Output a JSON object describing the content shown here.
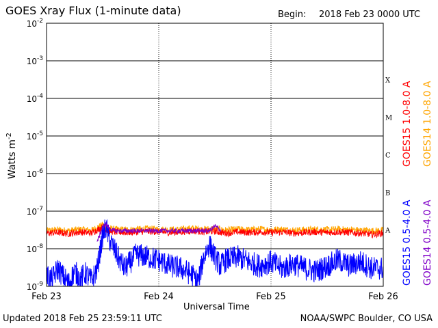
{
  "header": {
    "title": "GOES Xray Flux (1-minute data)",
    "begin_label": "Begin:",
    "begin_value": "2018 Feb 23 0000 UTC"
  },
  "footer": {
    "updated": "Updated 2018 Feb 25 23:59:11 UTC",
    "credit": "NOAA/SWPC Boulder, CO USA"
  },
  "chart_data": {
    "type": "line",
    "title": "GOES Xray Flux (1-minute data)",
    "xlabel": "Universal Time",
    "ylabel": "Watts m",
    "ylabel_superscript": "-2",
    "yscale": "log",
    "ylim": [
      1e-09,
      0.01
    ],
    "xlim": [
      "2018-02-23 00:00",
      "2018-02-26 00:00"
    ],
    "grid": true,
    "legend_position": "right (vertical labels)",
    "x_ticks": [
      "Feb 23",
      "Feb 24",
      "Feb 25",
      "Feb 26"
    ],
    "y_ticks": [
      {
        "base": "10",
        "exp": "-9"
      },
      {
        "base": "10",
        "exp": "-8"
      },
      {
        "base": "10",
        "exp": "-7"
      },
      {
        "base": "10",
        "exp": "-6"
      },
      {
        "base": "10",
        "exp": "-5"
      },
      {
        "base": "10",
        "exp": "-4"
      },
      {
        "base": "10",
        "exp": "-3"
      },
      {
        "base": "10",
        "exp": "-2"
      }
    ],
    "flare_classes": [
      {
        "label": "A",
        "lower": 1e-08
      },
      {
        "label": "B",
        "lower": 1e-07
      },
      {
        "label": "C",
        "lower": 1e-06
      },
      {
        "label": "M",
        "lower": 1e-05
      },
      {
        "label": "X",
        "lower": 0.0001
      }
    ],
    "series": [
      {
        "name": "GOES15 1.0-8.0 A",
        "color": "#ff0000",
        "x": [
          0,
          0.1,
          0.2,
          0.3,
          0.4,
          0.5,
          0.55,
          0.6,
          0.7,
          0.8,
          0.9,
          1.0,
          1.1,
          1.2,
          1.3,
          1.4,
          1.5,
          1.6,
          1.7,
          1.8,
          1.9,
          2.0,
          2.1,
          2.2,
          2.3,
          2.4,
          2.5,
          2.6,
          2.7,
          2.8,
          2.9,
          3.0
        ],
        "y": [
          2.6e-08,
          2.7e-08,
          2.5e-08,
          2.8e-08,
          2.6e-08,
          3.8e-08,
          3e-08,
          2.8e-08,
          2.7e-08,
          2.8e-08,
          2.9e-08,
          2.8e-08,
          2.7e-08,
          2.8e-08,
          3e-08,
          2.8e-08,
          2.9e-08,
          2.6e-08,
          2.8e-08,
          2.7e-08,
          2.8e-08,
          2.7e-08,
          2.8e-08,
          2.6e-08,
          2.7e-08,
          2.8e-08,
          2.7e-08,
          2.8e-08,
          2.7e-08,
          2.6e-08,
          2.4e-08,
          2.6e-08
        ]
      },
      {
        "name": "GOES14 1.0-8.0 A",
        "color": "#ffa500",
        "x": [
          0,
          0.1,
          0.2,
          0.3,
          0.4,
          0.5,
          0.55,
          0.6,
          0.7,
          0.8,
          0.9,
          1.0,
          1.1,
          1.2,
          1.3,
          1.4,
          1.5,
          1.6,
          1.7,
          1.8,
          1.9,
          2.0,
          2.1,
          2.2,
          2.3,
          2.4,
          2.5,
          2.6,
          2.7,
          2.8,
          2.9,
          3.0
        ],
        "y": [
          3e-08,
          3.2e-08,
          3e-08,
          3.3e-08,
          3.1e-08,
          4.3e-08,
          3.5e-08,
          3.3e-08,
          3.2e-08,
          3.3e-08,
          3.4e-08,
          3.3e-08,
          3.2e-08,
          3.3e-08,
          3.5e-08,
          3.3e-08,
          3.4e-08,
          3.1e-08,
          3.3e-08,
          3.2e-08,
          3.3e-08,
          3.2e-08,
          3.3e-08,
          3.1e-08,
          3.2e-08,
          3.3e-08,
          3.2e-08,
          3.3e-08,
          3.2e-08,
          3.1e-08,
          3e-08,
          3.1e-08
        ]
      },
      {
        "name": "GOES15 0.5-4.0 A",
        "color": "#0000ff",
        "x": [
          0,
          0.05,
          0.1,
          0.15,
          0.2,
          0.25,
          0.3,
          0.35,
          0.4,
          0.45,
          0.5,
          0.53,
          0.56,
          0.6,
          0.65,
          0.7,
          0.8,
          0.9,
          1.0,
          1.1,
          1.2,
          1.3,
          1.35,
          1.4,
          1.45,
          1.5,
          1.55,
          1.6,
          1.7,
          1.8,
          1.9,
          2.0,
          2.1,
          2.2,
          2.3,
          2.4,
          2.5,
          2.6,
          2.7,
          2.8,
          2.9,
          3.0
        ],
        "y": [
          2e-09,
          1.5e-09,
          3e-09,
          1.8e-09,
          1.2e-09,
          2.5e-09,
          1.6e-09,
          2.2e-09,
          1.4e-09,
          2.8e-09,
          2.2e-08,
          3.6e-08,
          1.8e-08,
          1e-08,
          5e-09,
          3e-09,
          7e-09,
          6e-09,
          5e-09,
          3.5e-09,
          3e-09,
          2e-09,
          1.3e-09,
          6e-09,
          1.3e-08,
          6e-09,
          3.5e-09,
          5e-09,
          6e-09,
          4.5e-09,
          3.5e-09,
          4.5e-09,
          3e-09,
          4e-09,
          3e-09,
          2.5e-09,
          3.5e-09,
          5e-09,
          3.5e-09,
          4.5e-09,
          3e-09,
          3e-09
        ]
      },
      {
        "name": "GOES14 0.5-4.0 A",
        "color": "#8000c8",
        "x": [
          0.45,
          0.5,
          0.53,
          0.56,
          0.6,
          1.45,
          1.5,
          1.55
        ],
        "y": [
          1.5e-08,
          3.8e-08,
          4.5e-08,
          3.5e-08,
          3e-08,
          3e-08,
          4e-08,
          3.2e-08
        ]
      }
    ]
  }
}
